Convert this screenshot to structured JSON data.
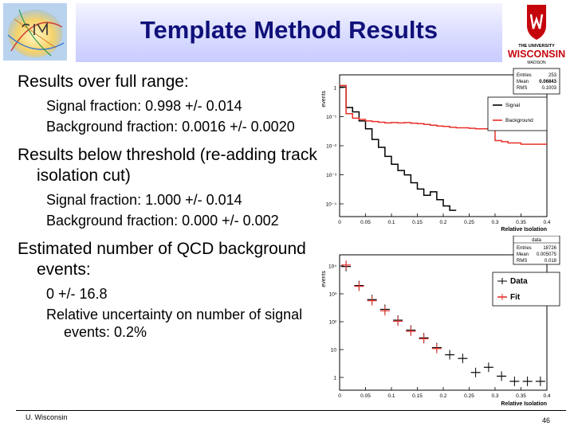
{
  "title": "Template Method Results",
  "logo_right": {
    "line1": "THE UNIVERSITY",
    "line2": "WISCONSIN",
    "line3": "MADISON"
  },
  "body": [
    {
      "level": 1,
      "text": "Results over full range:"
    },
    {
      "level": 2,
      "text": "Signal fraction: 0.998 +/- 0.014"
    },
    {
      "level": 2,
      "text": "Background fraction: 0.0016 +/- 0.0020"
    },
    {
      "level": 1,
      "text": "Results below threshold (re-adding track isolation cut)"
    },
    {
      "level": 2,
      "text": "Signal fraction: 1.000 +/- 0.014"
    },
    {
      "level": 2,
      "text": "Background fraction: 0.000 +/- 0.002"
    },
    {
      "level": 1,
      "text": "Estimated number of QCD background events:"
    },
    {
      "level": 2,
      "text": "0 +/- 16.8"
    },
    {
      "level": 2,
      "text": "Relative uncertainty on number of signal events: 0.2%"
    }
  ],
  "footer": {
    "left": "U. Wisconsin",
    "right": "46"
  },
  "chart_data": [
    {
      "type": "line",
      "ylabel": "events",
      "xlabel": "Relative Isolation",
      "xlim": [
        0,
        0.4
      ],
      "ylim": [
        0.0001,
        1
      ],
      "yscale": "log",
      "xticks": [
        "0",
        "0.05",
        "0.1",
        "0.15",
        "0.2",
        "0.25",
        "0.3",
        "0.35",
        "0.4"
      ],
      "yticks": [
        "1",
        "10⁻¹",
        "10⁻²",
        "10⁻³",
        "10⁻⁴"
      ],
      "stats": {
        "title": "",
        "rows": [
          [
            "Entries",
            "253"
          ],
          [
            "Mean",
            "0.06843"
          ],
          [
            "RMS",
            "0.1003"
          ]
        ]
      },
      "legend": {
        "placement": "top-right",
        "entries": [
          {
            "label": "Signal",
            "color": "#000000"
          },
          {
            "label": "Background",
            "color": "#e8302a"
          }
        ]
      },
      "bin_edges": [
        0,
        0.0125,
        0.025,
        0.0375,
        0.05,
        0.0625,
        0.075,
        0.0875,
        0.1,
        0.1125,
        0.125,
        0.1375,
        0.15,
        0.1625,
        0.175,
        0.1875,
        0.2,
        0.2125,
        0.225,
        0.2375,
        0.25,
        0.2625,
        0.275,
        0.2875,
        0.3,
        0.3125,
        0.325,
        0.3375,
        0.35,
        0.3625,
        0.375,
        0.3875,
        0.4
      ],
      "series": [
        {
          "name": "Signal",
          "color": "#000000",
          "values": [
            0.45,
            0.12,
            0.09,
            0.05,
            0.03,
            0.015,
            0.009,
            0.005,
            0.003,
            0.002,
            0.0015,
            0.0009,
            0.0006,
            0.0004,
            0.0005,
            0.0003,
            0.0002,
            0.00015
          ]
        },
        {
          "name": "Background",
          "color": "#e8302a",
          "values": [
            0.5,
            0.08,
            0.06,
            0.055,
            0.05,
            0.048,
            0.046,
            0.044,
            0.045,
            0.044,
            0.045,
            0.043,
            0.042,
            0.04,
            0.038,
            0.036,
            0.035,
            0.033,
            0.032,
            0.032,
            0.031,
            0.03,
            0.03,
            0.029,
            0.014,
            0.013,
            0.012,
            0.012,
            0.011,
            0.011,
            0.011,
            0.011
          ]
        }
      ]
    },
    {
      "type": "scatter",
      "ylabel": "events",
      "xlabel": "Relative Isolation",
      "xlim": [
        0,
        0.4
      ],
      "ylim": [
        0.5,
        20000
      ],
      "yscale": "log",
      "xticks": [
        "0",
        "0.05",
        "0.1",
        "0.15",
        "0.2",
        "0.25",
        "0.3",
        "0.35",
        "0.4"
      ],
      "yticks": [
        "10⁴",
        "10³",
        "10²",
        "10",
        "1"
      ],
      "stats": {
        "title": "data",
        "rows": [
          [
            "Entries",
            "18726"
          ],
          [
            "Mean",
            "0.005075"
          ],
          [
            "RMS",
            "0.018"
          ]
        ]
      },
      "legend": {
        "placement": "right",
        "entries": [
          {
            "label": "Data",
            "color": "#000000"
          },
          {
            "label": "Fit",
            "color": "#e8302a"
          }
        ]
      },
      "series": [
        {
          "name": "Data",
          "color": "#000000",
          "x": [
            0.0125,
            0.0375,
            0.0625,
            0.0875,
            0.1125,
            0.1375,
            0.1625,
            0.1875,
            0.2125,
            0.2375,
            0.2625,
            0.2875,
            0.3125,
            0.3375,
            0.3625,
            0.3875
          ],
          "y": [
            8000,
            1800,
            600,
            280,
            120,
            55,
            30,
            14,
            8,
            6,
            2,
            3,
            1.5,
            1,
            1,
            1
          ]
        },
        {
          "name": "Fit",
          "color": "#e8302a",
          "x": [
            0.0125,
            0.0375,
            0.0625,
            0.0875,
            0.1125,
            0.1375,
            0.1625,
            0.1875
          ],
          "y": [
            9000,
            1700,
            550,
            250,
            110,
            50,
            28,
            13
          ]
        }
      ]
    }
  ]
}
